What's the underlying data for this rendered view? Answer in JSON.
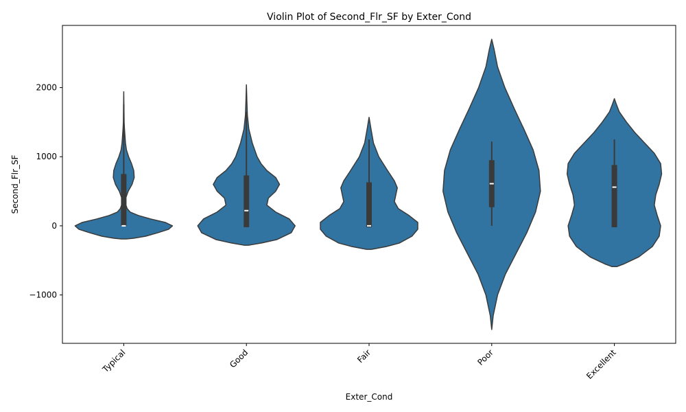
{
  "chart_data": {
    "type": "violin",
    "title": "Violin Plot of Second_Flr_SF by Exter_Cond",
    "xlabel": "Exter_Cond",
    "ylabel": "Second_Flr_SF",
    "ylim": [
      -1700,
      2900
    ],
    "yticks": [
      -1000,
      0,
      1000,
      2000
    ],
    "ytick_labels": [
      "−1000",
      "0",
      "1000",
      "2000"
    ],
    "categories": [
      "Typical",
      "Good",
      "Fair",
      "Poor",
      "Excellent"
    ],
    "colors": {
      "violin_fill": "#3274a1",
      "violin_edge": "#3a3a3a",
      "box": "#3a3a3a",
      "median": "#ffffff"
    },
    "violins": [
      {
        "category": "Typical",
        "box": {
          "q1": 0,
          "median": 0,
          "q3": 750,
          "whisker_low": 0,
          "whisker_high": 1760
        },
        "density": [
          [
            -190,
            0.05
          ],
          [
            -180,
            0.2
          ],
          [
            -150,
            0.45
          ],
          [
            -100,
            0.7
          ],
          [
            -50,
            0.92
          ],
          [
            0,
            1.0
          ],
          [
            50,
            0.85
          ],
          [
            100,
            0.55
          ],
          [
            150,
            0.3
          ],
          [
            200,
            0.13
          ],
          [
            250,
            0.07
          ],
          [
            300,
            0.045
          ],
          [
            400,
            0.04
          ],
          [
            500,
            0.09
          ],
          [
            600,
            0.17
          ],
          [
            700,
            0.215
          ],
          [
            800,
            0.205
          ],
          [
            900,
            0.16
          ],
          [
            1000,
            0.1
          ],
          [
            1100,
            0.055
          ],
          [
            1200,
            0.035
          ],
          [
            1300,
            0.025
          ],
          [
            1400,
            0.015
          ],
          [
            1500,
            0.008
          ],
          [
            1700,
            0.004
          ],
          [
            1940,
            0.0
          ]
        ]
      },
      {
        "category": "Good",
        "box": {
          "q1": -20,
          "median": 220,
          "q3": 730,
          "whisker_low": -20,
          "whisker_high": 1650
        },
        "density": [
          [
            -280,
            0.05
          ],
          [
            -250,
            0.3
          ],
          [
            -200,
            0.62
          ],
          [
            -100,
            0.92
          ],
          [
            0,
            1.0
          ],
          [
            100,
            0.88
          ],
          [
            200,
            0.6
          ],
          [
            300,
            0.42
          ],
          [
            400,
            0.45
          ],
          [
            500,
            0.6
          ],
          [
            600,
            0.68
          ],
          [
            700,
            0.6
          ],
          [
            800,
            0.42
          ],
          [
            900,
            0.3
          ],
          [
            1000,
            0.22
          ],
          [
            1200,
            0.12
          ],
          [
            1400,
            0.05
          ],
          [
            1600,
            0.02
          ],
          [
            1800,
            0.01
          ],
          [
            2040,
            0.0
          ]
        ]
      },
      {
        "category": "Fair",
        "box": {
          "q1": -20,
          "median": 0,
          "q3": 630,
          "whisker_low": -20,
          "whisker_high": 1250
        },
        "density": [
          [
            -340,
            0.05
          ],
          [
            -300,
            0.35
          ],
          [
            -250,
            0.62
          ],
          [
            -150,
            0.88
          ],
          [
            -50,
            1.0
          ],
          [
            50,
            1.0
          ],
          [
            150,
            0.82
          ],
          [
            250,
            0.6
          ],
          [
            350,
            0.52
          ],
          [
            450,
            0.55
          ],
          [
            550,
            0.58
          ],
          [
            650,
            0.52
          ],
          [
            800,
            0.38
          ],
          [
            1000,
            0.2
          ],
          [
            1200,
            0.09
          ],
          [
            1400,
            0.04
          ],
          [
            1570,
            0.0
          ]
        ]
      },
      {
        "category": "Poor",
        "box": {
          "q1": 270,
          "median": 610,
          "q3": 950,
          "whisker_low": 0,
          "whisker_high": 1220
        },
        "density": [
          [
            -1500,
            0.0
          ],
          [
            -1300,
            0.03
          ],
          [
            -1000,
            0.12
          ],
          [
            -700,
            0.28
          ],
          [
            -400,
            0.5
          ],
          [
            -100,
            0.72
          ],
          [
            200,
            0.9
          ],
          [
            500,
            1.0
          ],
          [
            800,
            0.97
          ],
          [
            1100,
            0.85
          ],
          [
            1400,
            0.66
          ],
          [
            1700,
            0.46
          ],
          [
            2000,
            0.27
          ],
          [
            2300,
            0.12
          ],
          [
            2550,
            0.05
          ],
          [
            2700,
            0.0
          ]
        ]
      },
      {
        "category": "Excellent",
        "box": {
          "q1": -20,
          "median": 560,
          "q3": 880,
          "whisker_low": -20,
          "whisker_high": 1250
        },
        "density": [
          [
            -590,
            0.05
          ],
          [
            -550,
            0.2
          ],
          [
            -450,
            0.5
          ],
          [
            -300,
            0.78
          ],
          [
            -150,
            0.92
          ],
          [
            0,
            0.95
          ],
          [
            150,
            0.88
          ],
          [
            300,
            0.82
          ],
          [
            450,
            0.85
          ],
          [
            600,
            0.92
          ],
          [
            750,
            0.97
          ],
          [
            900,
            0.95
          ],
          [
            1050,
            0.82
          ],
          [
            1200,
            0.62
          ],
          [
            1350,
            0.42
          ],
          [
            1500,
            0.25
          ],
          [
            1650,
            0.1
          ],
          [
            1760,
            0.04
          ],
          [
            1840,
            0.0
          ]
        ]
      }
    ]
  }
}
